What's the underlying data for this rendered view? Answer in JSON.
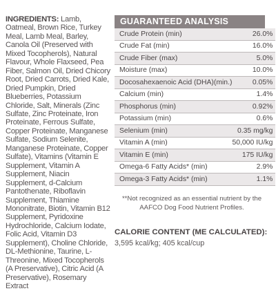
{
  "ingredients": {
    "title": "INGREDIENTS:",
    "text": "Lamb, Oatmeal, Brown Rice, Turkey Meal, Lamb Meal, Barley, Canola Oil (Preserved with Mixed Tocopherols), Natural Flavour, Whole Flaxseed, Pea Fiber, Salmon Oil, Dried Chicory Root, Dried Carrots, Dried Kale, Dried Pumpkin, Dried Blueberries, Potassium Chloride, Salt, Minerals (Zinc Sulfate, Zinc Proteinate, Iron Proteinate, Ferrous Sulfate, Copper Proteinate, Manganese Sulfate, Sodium Selenite, Manganese Proteinate, Copper Sulfate), Vitamins (Vitamin E Supplement, Vitamin A Supplement, Niacin Supplement, d-Calcium Pantothenate, Riboflavin Supplement, Thiamine Mononitrate, Biotin, Vitamin B12 Supplement, Pyridoxine Hydrochloride, Calcium Iodate, Folic Acid, Vitamin D3 Supplement), Choline Chloride, DL-Methionine, Taurine, L-Threonine, Mixed Tocopherols (A Preservative), Citric Acid (A Preservative), Rosemary Extract"
  },
  "guaranteed_analysis": {
    "title": "GUARANTEED ANALYSIS",
    "rows": [
      {
        "name": "Crude Protein (min)",
        "value": "26.0%"
      },
      {
        "name": "Crude Fat (min)",
        "value": "16.0%"
      },
      {
        "name": "Crude Fiber (max)",
        "value": "5.0%"
      },
      {
        "name": "Moisture (max)",
        "value": "10.0%"
      },
      {
        "name": "Docosahexaenoic Acid (DHA)(min.)",
        "value": "0.05%"
      },
      {
        "name": "Calcium (min)",
        "value": "1.4%"
      },
      {
        "name": "Phosphorus (min)",
        "value": "0.92%"
      },
      {
        "name": "Potassium (min)",
        "value": "0.6%"
      },
      {
        "name": "Selenium (min)",
        "value": "0.35 mg/kg"
      },
      {
        "name": "Vitamin A (min)",
        "value": "50,000 IU/kg"
      },
      {
        "name": "Vitamin E (min)",
        "value": "175 IU/kg"
      },
      {
        "name": "Omega-6 Fatty Acids* (min)",
        "value": "2.9%"
      },
      {
        "name": "Omega-3 Fatty Acids* (min)",
        "value": "1.1%"
      }
    ]
  },
  "footnote": "**Not recognized as an essential nutrient by the AAFCO Dog Food Nutrient Profiles.",
  "calorie": {
    "title": "CALORIE CONTENT (ME CALCULATED):",
    "value": "3,595 kcal/kg; 405 kcal/cup"
  }
}
